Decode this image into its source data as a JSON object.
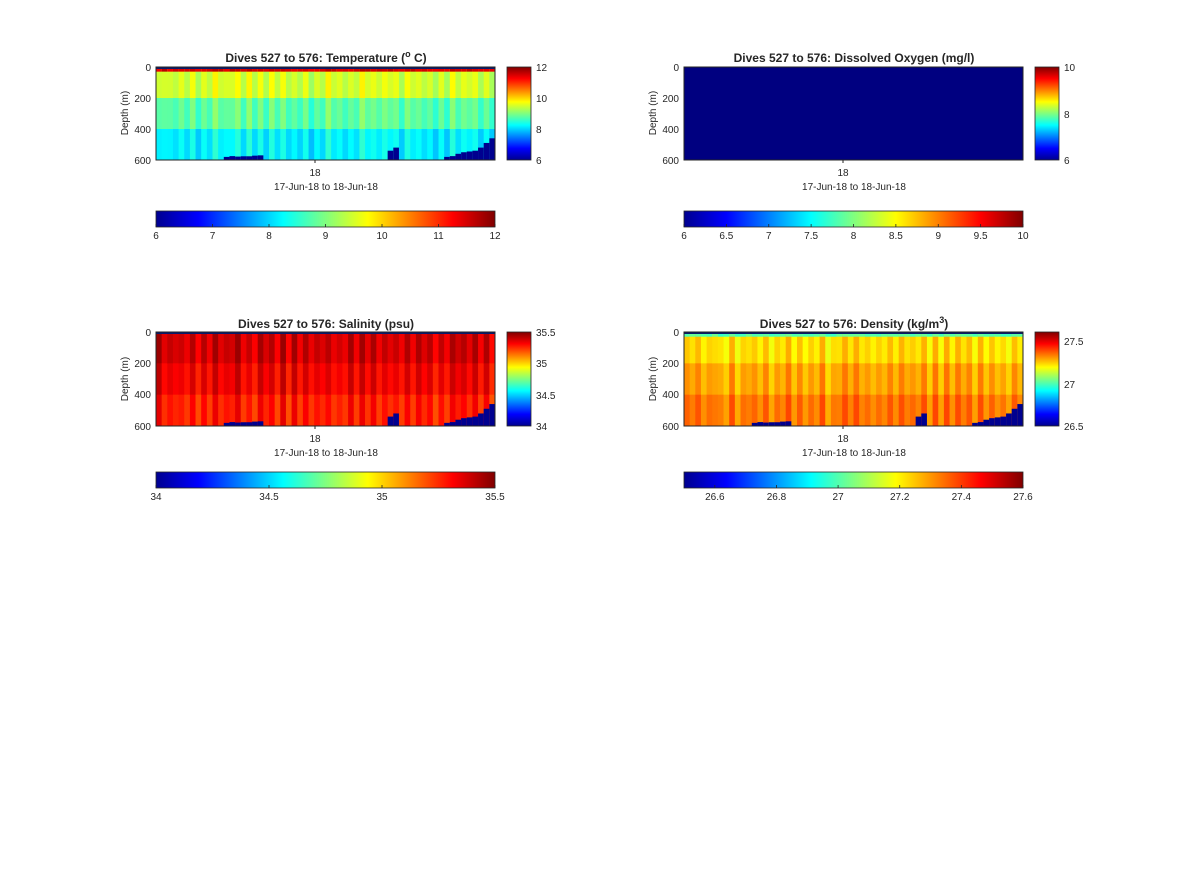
{
  "figure": {
    "background": "#ffffff",
    "colormap": "jet"
  },
  "chart_data": [
    {
      "type": "heatmap",
      "title": "Dives 527 to 576: Temperature (",
      "title_sup": "o",
      "title_tail": " C)",
      "ylabel": "Depth (m)",
      "xlabel": "17-Jun-18 to 18-Jun-18",
      "x_ticks": [
        "18"
      ],
      "y_ticks": [
        "0",
        "200",
        "400",
        "600"
      ],
      "ylim": [
        0,
        600
      ],
      "clim": [
        6,
        12
      ],
      "colorbar_ticks": [
        "6",
        "8",
        "10",
        "12"
      ],
      "bottom_colorbar_ticks": [
        "6",
        "7",
        "8",
        "9",
        "10",
        "11",
        "12"
      ],
      "grid": false,
      "dives": 50,
      "profile_surface_layer": {
        "depth_m": 30,
        "value": 11.5
      },
      "profile_values": {
        "upper_m_0_200": 9.5,
        "mid_m_200_400": 8.8,
        "deep_m_400_600": 8.2
      },
      "seafloor_depth_m": [
        600,
        600,
        600,
        600,
        600,
        600,
        600,
        600,
        600,
        600,
        600,
        600,
        580,
        575,
        578,
        576,
        576,
        572,
        570,
        600,
        600,
        600,
        600,
        600,
        600,
        600,
        600,
        600,
        600,
        600,
        600,
        600,
        600,
        600,
        600,
        600,
        600,
        600,
        600,
        600,
        600,
        540,
        520,
        600,
        600,
        600,
        600,
        600,
        600,
        600,
        600,
        580,
        575,
        560,
        550,
        545,
        540,
        520,
        490,
        460
      ]
    },
    {
      "type": "heatmap",
      "title": "Dives 527 to 576: Dissolved Oxygen (mg/l)",
      "ylabel": "Depth (m)",
      "xlabel": "17-Jun-18 to 18-Jun-18",
      "x_ticks": [
        "18"
      ],
      "y_ticks": [
        "0",
        "200",
        "400",
        "600"
      ],
      "ylim": [
        0,
        600
      ],
      "clim": [
        6,
        10
      ],
      "colorbar_ticks": [
        "6",
        "8",
        "10"
      ],
      "bottom_colorbar_ticks": [
        "6",
        "6.5",
        "7",
        "7.5",
        "8",
        "8.5",
        "9",
        "9.5",
        "10"
      ],
      "grid": false,
      "uniform_value": 6
    },
    {
      "type": "heatmap",
      "title": "Dives 527 to 576: Salinity (psu)",
      "ylabel": "Depth (m)",
      "xlabel": "17-Jun-18 to 18-Jun-18",
      "x_ticks": [
        "18"
      ],
      "y_ticks": [
        "0",
        "200",
        "400",
        "600"
      ],
      "ylim": [
        0,
        600
      ],
      "clim": [
        34,
        35.5
      ],
      "colorbar_ticks": [
        "34",
        "34.5",
        "35",
        "35.5"
      ],
      "bottom_colorbar_ticks": [
        "34",
        "34.5",
        "35",
        "35.5"
      ],
      "grid": false,
      "profile_values": {
        "upper_m_0_200": 35.38,
        "mid_m_200_400": 35.33,
        "deep_m_400_600": 35.27
      }
    },
    {
      "type": "heatmap",
      "title": "Dives 527 to 576: Density (kg/m",
      "title_sup": "3",
      "title_tail": ")",
      "ylabel": "Depth (m)",
      "xlabel": "17-Jun-18 to 18-Jun-18",
      "x_ticks": [
        "18"
      ],
      "y_ticks": [
        "0",
        "200",
        "400",
        "600"
      ],
      "ylim": [
        0,
        600
      ],
      "clim": [
        26.5,
        27.6
      ],
      "colorbar_ticks": [
        "27.5",
        "27",
        "26.5"
      ],
      "bottom_colorbar_ticks": [
        "26.6",
        "26.8",
        "27",
        "27.2",
        "27.4",
        "27.6"
      ],
      "grid": false,
      "profile_surface_layer": {
        "depth_m": 30,
        "value": 27.0
      },
      "profile_values": {
        "upper_m_0_200": 27.22,
        "mid_m_200_400": 27.28,
        "deep_m_400_600": 27.33
      }
    }
  ]
}
